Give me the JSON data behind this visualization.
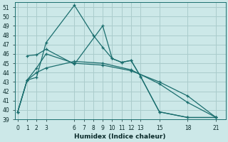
{
  "xlabel": "Humidex (Indice chaleur)",
  "bg_color": "#cce8e8",
  "line_color": "#1a6e6e",
  "grid_color": "#aacccc",
  "lines": [
    {
      "x": [
        0,
        1,
        2,
        3,
        6,
        8,
        9,
        10,
        11,
        12,
        13,
        15,
        18,
        21
      ],
      "y": [
        39.8,
        43.2,
        43.5,
        47.2,
        51.2,
        48.0,
        46.7,
        45.5,
        45.1,
        45.3,
        43.6,
        39.8,
        39.2,
        39.2
      ]
    },
    {
      "x": [
        1,
        2,
        3,
        6,
        9,
        10,
        11,
        12,
        13,
        15,
        18,
        21
      ],
      "y": [
        45.8,
        45.9,
        46.5,
        44.9,
        49.0,
        45.5,
        45.1,
        45.3,
        43.6,
        39.8,
        39.2,
        39.2
      ]
    },
    {
      "x": [
        0,
        1,
        2,
        3,
        6,
        9,
        12,
        15,
        18,
        21
      ],
      "y": [
        39.8,
        43.2,
        44.0,
        44.5,
        45.2,
        45.0,
        44.3,
        42.8,
        40.8,
        39.2
      ]
    },
    {
      "x": [
        0,
        1,
        2,
        3,
        6,
        9,
        12,
        15,
        18,
        21
      ],
      "y": [
        39.8,
        43.2,
        44.5,
        46.0,
        45.0,
        44.8,
        44.2,
        43.0,
        41.5,
        39.2
      ]
    }
  ],
  "xlim": [
    -0.3,
    22
  ],
  "ylim": [
    39,
    51.5
  ],
  "yticks": [
    39,
    40,
    41,
    42,
    43,
    44,
    45,
    46,
    47,
    48,
    49,
    50,
    51
  ],
  "xticks": [
    0,
    1,
    2,
    3,
    6,
    7,
    8,
    9,
    10,
    11,
    12,
    13,
    15,
    18,
    21
  ]
}
